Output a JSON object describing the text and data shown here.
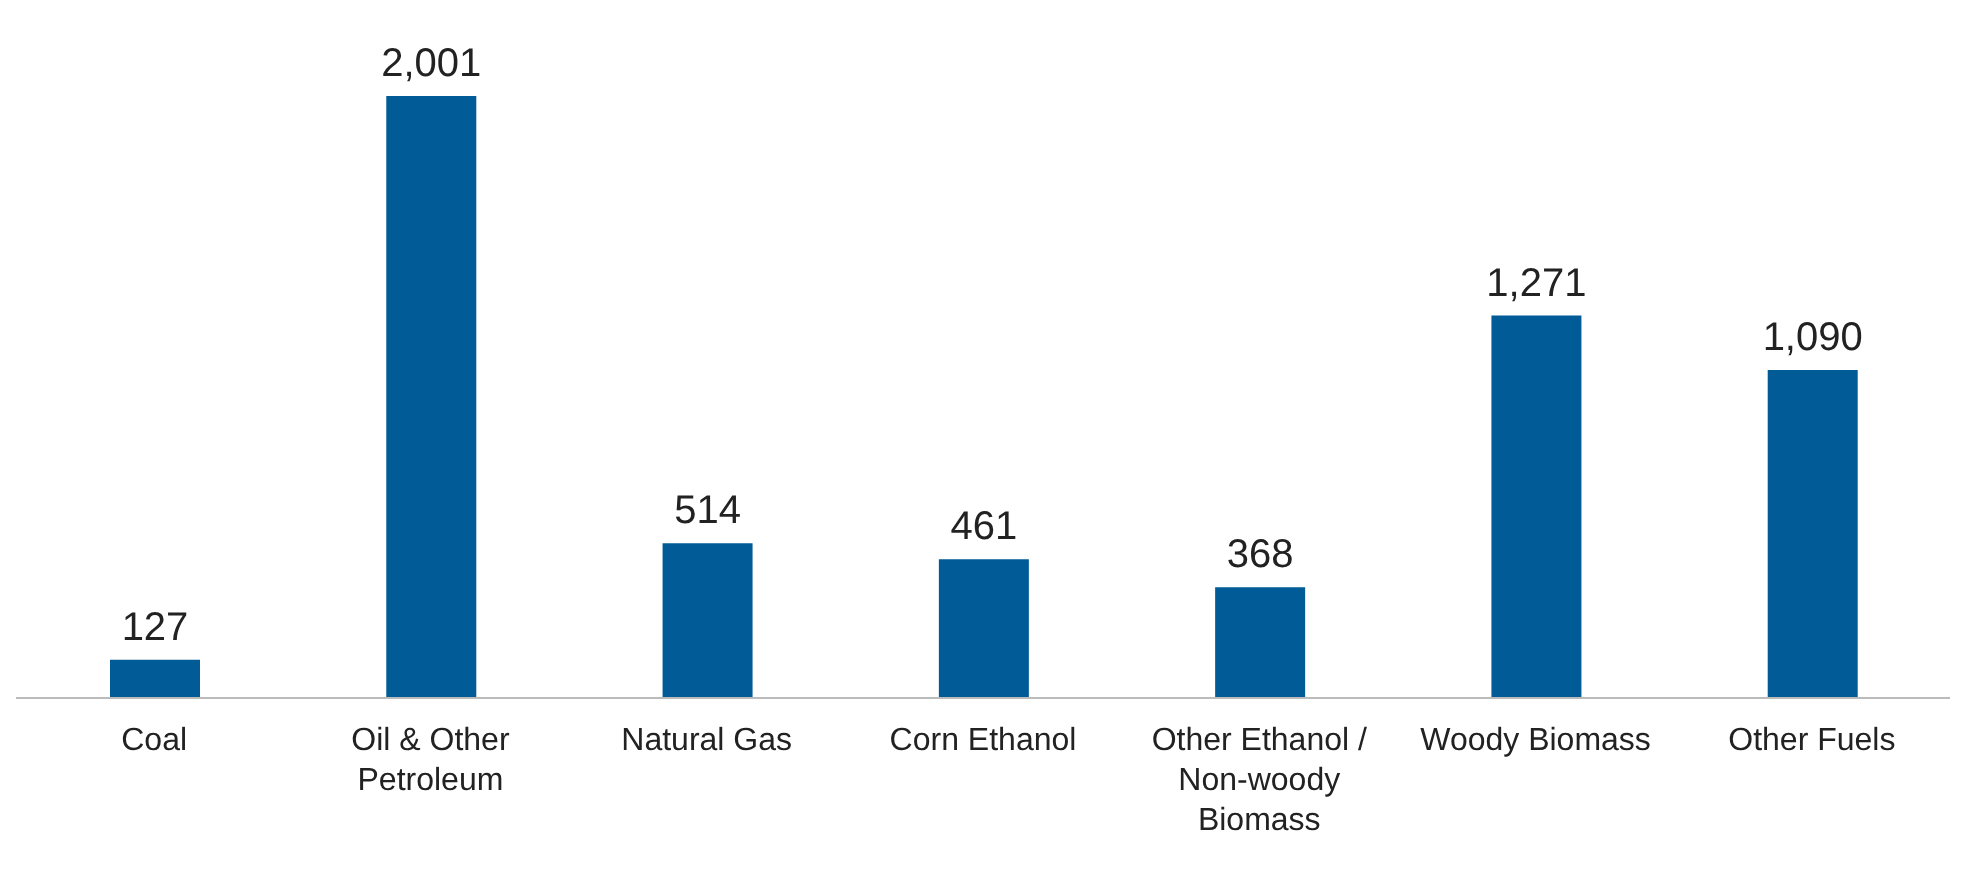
{
  "chart_data": {
    "type": "bar",
    "categories": [
      "Coal",
      "Oil & Other Petroleum",
      "Natural Gas",
      "Corn Ethanol",
      "Other Ethanol / Non-woody Biomass",
      "Woody Biomass",
      "Other Fuels"
    ],
    "values": [
      127,
      2001,
      514,
      461,
      368,
      1271,
      1090
    ],
    "value_labels": [
      "127",
      "2,001",
      "514",
      "461",
      "368",
      "1,271",
      "1,090"
    ],
    "color": "#005b96"
  }
}
